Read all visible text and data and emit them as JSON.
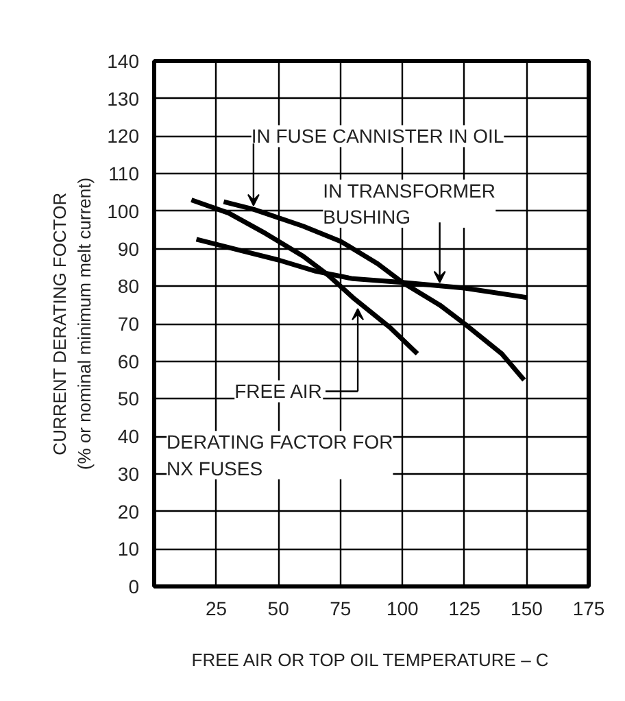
{
  "chart_data": {
    "type": "line",
    "xlabel": "FREE AIR OR TOP OIL TEMPERATURE – C",
    "ylabel": "CURRENT DERATING FOCTOR\n(% or nominal minimum melt current)",
    "xlim": [
      0,
      175
    ],
    "xticks": [
      25,
      50,
      75,
      100,
      125,
      150,
      175
    ],
    "ylim": [
      0,
      140
    ],
    "yticks": [
      0,
      10,
      20,
      30,
      40,
      50,
      60,
      70,
      80,
      90,
      100,
      110,
      120,
      130,
      140
    ],
    "grid": true,
    "line_style": "solid",
    "marker": "none",
    "series": [
      {
        "color": "#000000",
        "x": [
          15,
          30,
          45,
          60,
          70,
          80,
          95,
          106
        ],
        "values": [
          103,
          99.5,
          94,
          88,
          83,
          77,
          69,
          62
        ]
      },
      {
        "color": "#000000",
        "x": [
          28,
          40,
          60,
          75,
          90,
          100,
          115,
          125,
          140,
          149
        ],
        "values": [
          102.5,
          100.5,
          96,
          92,
          86,
          81,
          75,
          70,
          62,
          55
        ]
      },
      {
        "color": "#000000",
        "x": [
          17,
          35,
          50,
          65,
          80,
          100,
          125,
          150
        ],
        "values": [
          92.5,
          89.5,
          87,
          84,
          82,
          81,
          79.5,
          77
        ]
      }
    ],
    "annotations": [
      {
        "text": "IN FUSE CANNISTER IN OIL",
        "x": 40,
        "y": 100.5
      },
      {
        "text": "IN TRANSFORMER\nBUSHING",
        "x": 115,
        "y": 80
      },
      "FREE AIR",
      "DERATING FACTOR FOR\nNX FUSES"
    ]
  }
}
